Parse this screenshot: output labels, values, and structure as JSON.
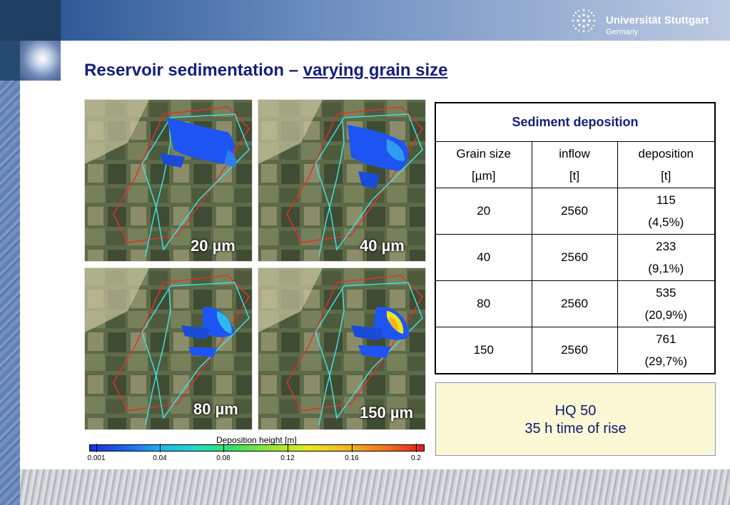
{
  "header": {
    "logo": {
      "name": "Universität Stuttgart",
      "country": "Germany",
      "icon": "university-logo-icon"
    }
  },
  "slide": {
    "title_main": "Reservoir sedimentation – ",
    "title_sub": "varying grain size"
  },
  "maps": [
    {
      "label": "20 µm"
    },
    {
      "label": "40 µm"
    },
    {
      "label": "80 µm"
    },
    {
      "label": "150 µm"
    }
  ],
  "colorbar": {
    "title": "Deposition height [m]",
    "ticks": [
      "0.001",
      "0.04",
      "0.08",
      "0.12",
      "0.16",
      "0.2"
    ]
  },
  "table": {
    "title": "Sediment deposition",
    "headers": [
      {
        "line1": "Grain size",
        "line2": "[µm]"
      },
      {
        "line1": "inflow",
        "line2": "[t]"
      },
      {
        "line1": "deposition",
        "line2": "[t]"
      }
    ],
    "rows": [
      {
        "grain": "20",
        "inflow": "2560",
        "deposition": "115",
        "percent": "(4,5%)"
      },
      {
        "grain": "40",
        "inflow": "2560",
        "deposition": "233",
        "percent": "(9,1%)"
      },
      {
        "grain": "80",
        "inflow": "2560",
        "deposition": "535",
        "percent": "(20,9%)"
      },
      {
        "grain": "150",
        "inflow": "2560",
        "deposition": "761",
        "percent": "(29,7%)"
      }
    ]
  },
  "note": {
    "line1": "HQ 50",
    "line2": "35 h time of rise"
  }
}
